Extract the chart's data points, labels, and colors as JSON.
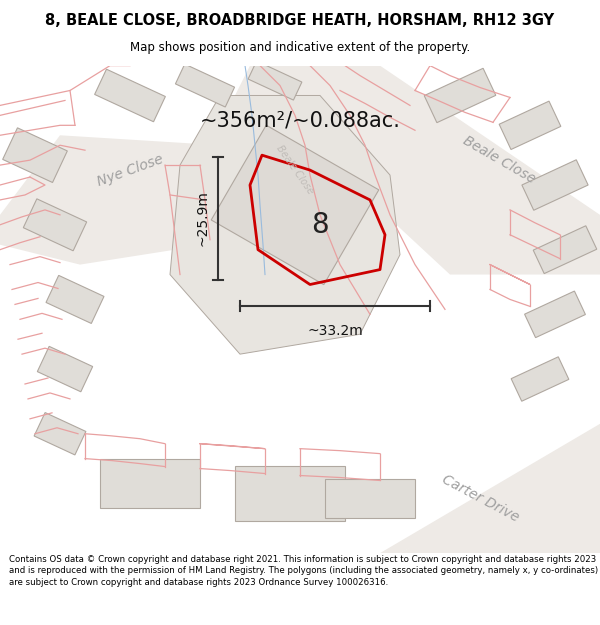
{
  "title": "8, BEALE CLOSE, BROADBRIDGE HEATH, HORSHAM, RH12 3GY",
  "subtitle": "Map shows position and indicative extent of the property.",
  "area_text": "~356m²/~0.088ac.",
  "dim_width": "~33.2m",
  "dim_height": "~25.9m",
  "plot_number": "8",
  "footer_text": "Contains OS data © Crown copyright and database right 2021. This information is subject to Crown copyright and database rights 2023 and is reproduced with the permission of HM Land Registry. The polygons (including the associated geometry, namely x, y co-ordinates) are subject to Crown copyright and database rights 2023 Ordnance Survey 100026316.",
  "map_bg": "#f5f3f0",
  "building_fill": "#e0ddd8",
  "building_outline": "#b0a8a0",
  "road_fill": "#ffffff",
  "boundary_color": "#e8a0a0",
  "title_color": "#000000",
  "footer_color": "#000000",
  "red_color": "#cc0000",
  "arrow_color": "#333333",
  "road_label_color": "#a0a0a0",
  "blue_line_color": "#99bbdd"
}
